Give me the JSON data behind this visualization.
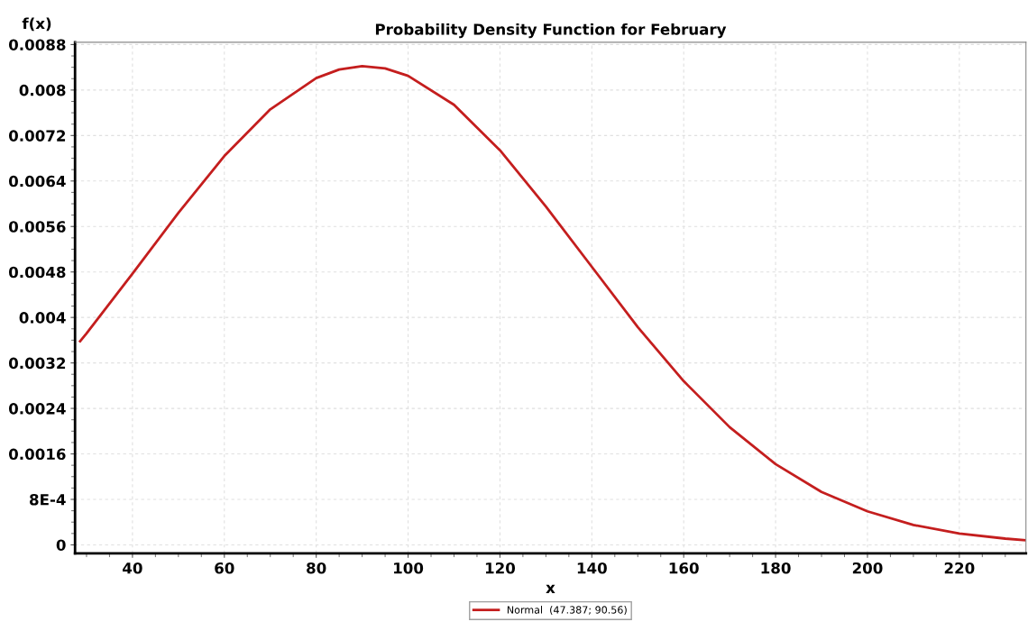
{
  "chart_data": {
    "type": "line",
    "title": "Probability Density Function for February",
    "xlabel": "x",
    "ylabel": "f(x)",
    "x": [
      28.6,
      30,
      40,
      50,
      60,
      70,
      80,
      85,
      90,
      95,
      100,
      110,
      120,
      130,
      140,
      150,
      160,
      170,
      180,
      190,
      200,
      210,
      220,
      230,
      234.5
    ],
    "series": [
      {
        "name": "Normal  (47.387; 90.56)",
        "color": "#c41e1e",
        "values": [
          0.00358,
          0.00372,
          0.00477,
          0.00584,
          0.00684,
          0.00766,
          0.00821,
          0.00836,
          0.00842,
          0.00838,
          0.00825,
          0.00774,
          0.00694,
          0.00595,
          0.00489,
          0.00383,
          0.00288,
          0.00207,
          0.00142,
          0.00093,
          0.00059,
          0.00035,
          0.0002,
          0.00011,
          8e-05
        ]
      }
    ],
    "xlim": [
      27.5,
      234.5
    ],
    "xticks": [
      40,
      60,
      80,
      100,
      120,
      140,
      160,
      180,
      200,
      220
    ],
    "ylim": [
      -0.00015,
      0.00884
    ],
    "yticks": [
      0,
      {
        "value": 0.0008,
        "label": "8E-4"
      },
      0.0016,
      0.0024,
      0.0032,
      0.004,
      0.0048,
      0.0056,
      0.0064,
      0.0072,
      0.008,
      0.0088
    ],
    "grid": true,
    "legend": "bottom",
    "marker": "none",
    "line_style": "solid"
  }
}
